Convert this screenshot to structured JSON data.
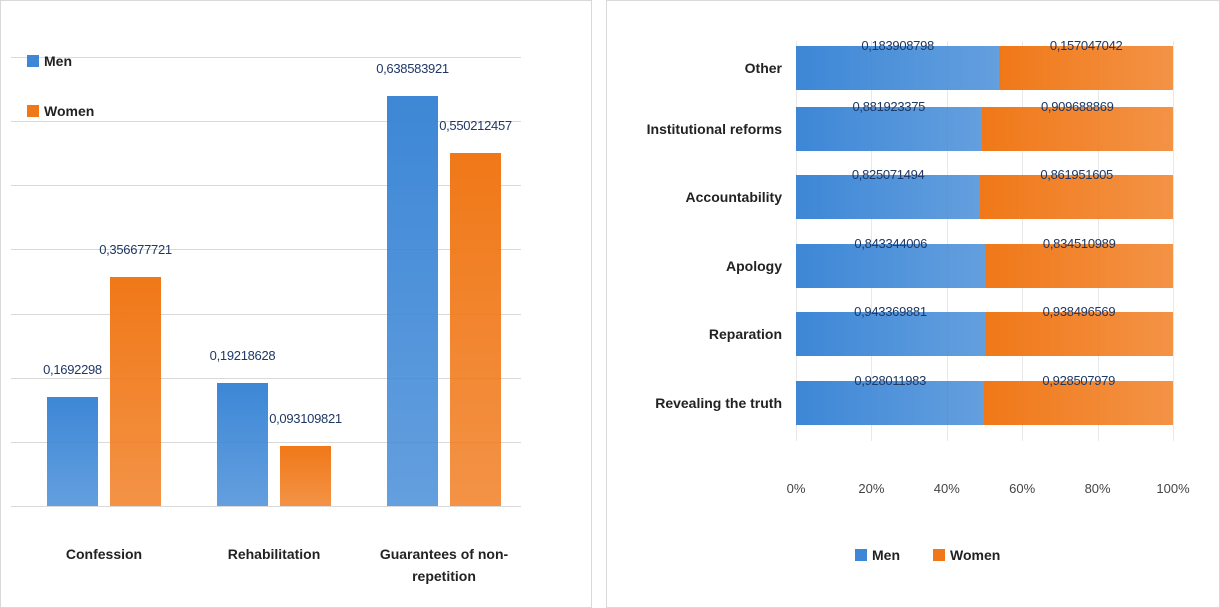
{
  "chart_data": [
    {
      "type": "bar",
      "categories": [
        "Confession",
        "Rehabilitation",
        "Guarantees of non-repetition"
      ],
      "series": [
        {
          "name": "Men",
          "color": "#3d87d6",
          "values": [
            0.1692298,
            0.19218628,
            0.638583921
          ],
          "value_labels": [
            "0,1692298",
            "0,19218628",
            "0,638583921"
          ]
        },
        {
          "name": "Women",
          "color": "#f07818",
          "values": [
            0.356677721,
            0.093109821,
            0.550212457
          ],
          "value_labels": [
            "0,356677721",
            "0,093109821",
            "0,550212457"
          ]
        }
      ],
      "ylim": [
        0,
        0.7
      ],
      "yticks": [
        0,
        0.1,
        0.2,
        0.3,
        0.4,
        0.5,
        0.6,
        0.7
      ],
      "grid": true,
      "legend": "top-left"
    },
    {
      "type": "bar_stacked_percent_horizontal",
      "categories": [
        "Other",
        "Institutional reforms",
        "Accountability",
        "Apology",
        "Reparation",
        "Revealing the truth"
      ],
      "series": [
        {
          "name": "Men",
          "color": "#3d87d6",
          "values": [
            0.183908798,
            0.881923375,
            0.825071494,
            0.843344006,
            0.943369881,
            0.928011983
          ],
          "value_labels": [
            "0,183908798",
            "0,881923375",
            "0,825071494",
            "0,843344006",
            "0,943369881",
            "0,928011983"
          ]
        },
        {
          "name": "Women",
          "color": "#f07818",
          "values": [
            0.157047042,
            0.909688869,
            0.861951605,
            0.834510989,
            0.938496569,
            0.928507979
          ],
          "value_labels": [
            "0,157047042",
            "0,909688869",
            "0,861951605",
            "0,834510989",
            "0,938496569",
            "0,928507979"
          ]
        }
      ],
      "xlim": [
        0,
        100
      ],
      "xticks": [
        {
          "value": 0,
          "label": "0%"
        },
        {
          "value": 20,
          "label": "20%"
        },
        {
          "value": 40,
          "label": "40%"
        },
        {
          "value": 60,
          "label": "60%"
        },
        {
          "value": 80,
          "label": "80%"
        },
        {
          "value": 100,
          "label": "100%"
        }
      ],
      "legend": "bottom"
    }
  ]
}
